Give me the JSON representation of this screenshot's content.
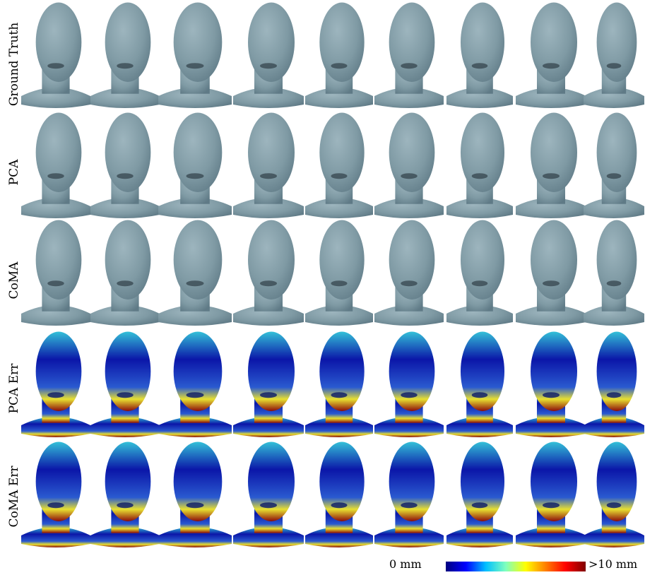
{
  "rows": [
    {
      "label": "Ground Truth",
      "kind": "mesh"
    },
    {
      "label": "PCA",
      "kind": "mesh"
    },
    {
      "label": "CoMA",
      "kind": "mesh"
    },
    {
      "label": "PCA Err",
      "kind": "error"
    },
    {
      "label": "CoMA Err",
      "kind": "error"
    }
  ],
  "columns": 9,
  "colors": {
    "mesh_fill": "#7f9aa4",
    "mesh_shade": "#5f7a86",
    "mouth": "#3a4a52",
    "err_low": "#0b16a8",
    "err_mid": "#33c0d8",
    "err_yellow": "#e8e030",
    "err_high": "#8b0a0a"
  },
  "colorbar": {
    "min_label": "0 mm",
    "max_label": ">10 mm",
    "stops": [
      "#00007f",
      "#0000ff",
      "#00bfff",
      "#7fffbf",
      "#ffff00",
      "#ff7f00",
      "#ff0000",
      "#7f0000"
    ]
  }
}
